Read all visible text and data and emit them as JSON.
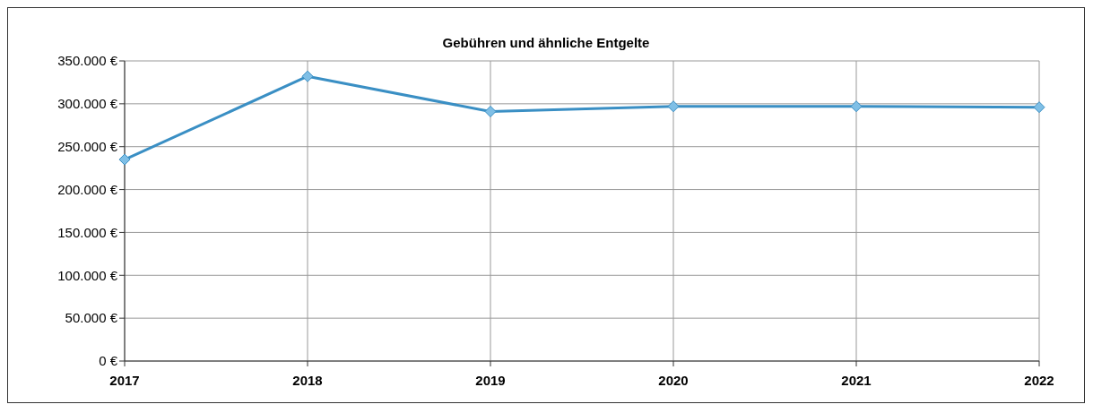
{
  "chart_data": {
    "type": "line",
    "title": "Gebühren und ähnliche Entgelte",
    "categories": [
      "2017",
      "2018",
      "2019",
      "2020",
      "2021",
      "2022"
    ],
    "series": [
      {
        "color": "#3a8fc4",
        "values": [
          235000,
          332000,
          291000,
          297000,
          297000,
          296000
        ]
      }
    ],
    "ylim": [
      0,
      350000
    ],
    "yticks": [
      {
        "value": 0,
        "label": "0 €"
      },
      {
        "value": 50000,
        "label": "50.000 €"
      },
      {
        "value": 100000,
        "label": "100.000 €"
      },
      {
        "value": 150000,
        "label": "150.000 €"
      },
      {
        "value": 200000,
        "label": "200.000 €"
      },
      {
        "value": 250000,
        "label": "250.000 €"
      },
      {
        "value": 300000,
        "label": "300.000 €"
      },
      {
        "value": 350000,
        "label": "350.000 €"
      }
    ],
    "grid": true,
    "marker": "diamond",
    "line_style": "solid",
    "legend": false
  }
}
